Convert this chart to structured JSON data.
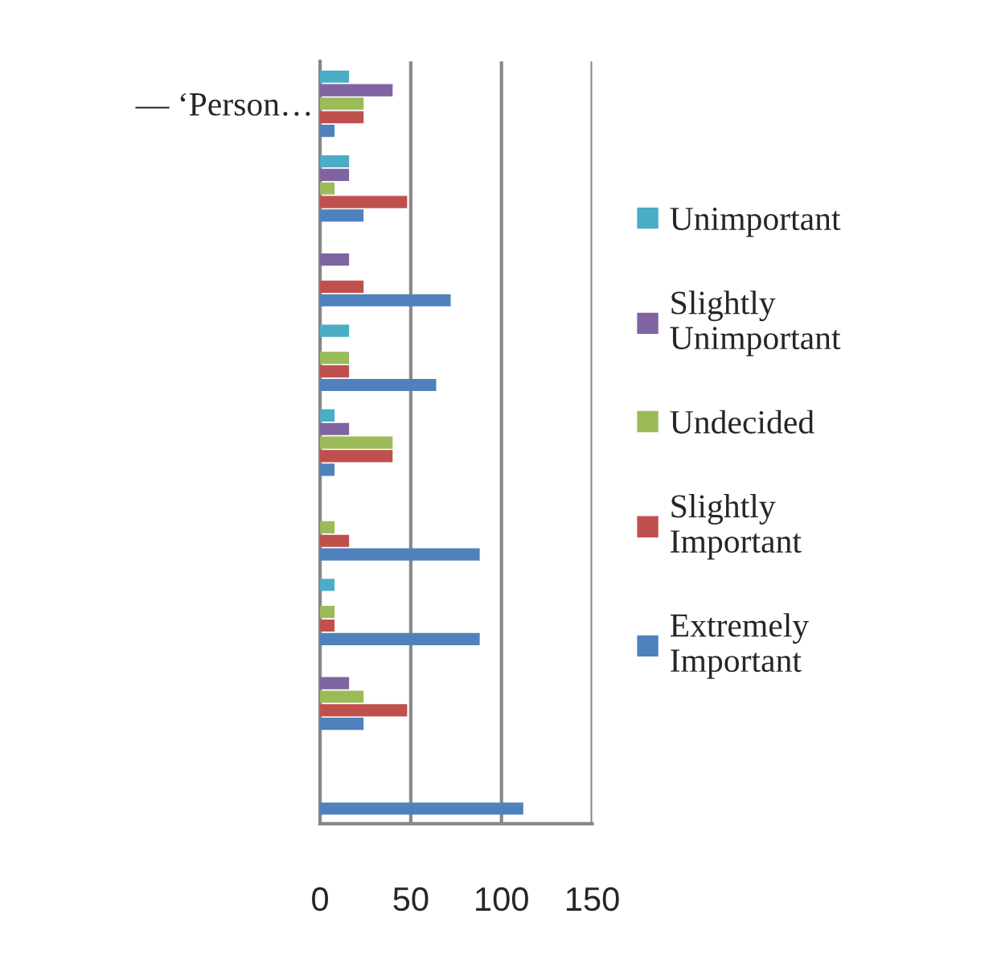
{
  "chart_data": {
    "type": "bar",
    "orientation": "horizontal",
    "categories": [
      "— ‘Person…",
      null,
      null,
      null,
      null,
      null,
      null,
      null,
      null
    ],
    "series": [
      {
        "name": "Unimportant",
        "color": "#4bacc6",
        "values": [
          16,
          16,
          0,
          16,
          8,
          0,
          8,
          0,
          0
        ]
      },
      {
        "name": "Slightly\nUnimportant",
        "color": "#8064a2",
        "values": [
          40,
          16,
          16,
          0,
          16,
          0,
          0,
          16,
          0
        ]
      },
      {
        "name": "Undecided",
        "color": "#9bbb59",
        "values": [
          24,
          8,
          0,
          16,
          40,
          8,
          8,
          24,
          0
        ]
      },
      {
        "name": "Slightly\nImportant",
        "color": "#c0504d",
        "values": [
          24,
          48,
          24,
          16,
          40,
          16,
          8,
          48,
          0
        ]
      },
      {
        "name": "Extremely\nImportant",
        "color": "#4f81bd",
        "values": [
          8,
          24,
          72,
          64,
          8,
          88,
          88,
          24,
          112
        ]
      }
    ],
    "xlim": [
      0,
      150
    ],
    "xticks": [
      0,
      50,
      100,
      150
    ],
    "grid": "x",
    "legend": "right"
  }
}
